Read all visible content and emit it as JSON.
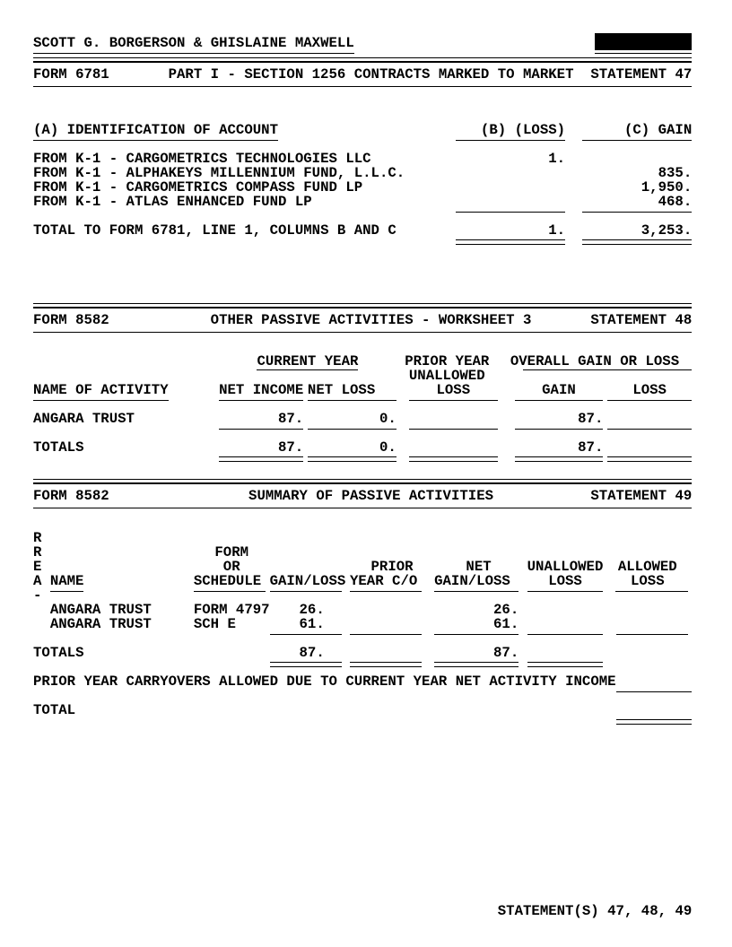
{
  "colors": {
    "text": "#000000",
    "background": "#ffffff",
    "redaction": "#000000"
  },
  "header": {
    "taxpayer_name": "SCOTT G. BORGERSON & GHISLAINE MAXWELL"
  },
  "footer": {
    "text": "STATEMENT(S) 47, 48, 49"
  },
  "statement47": {
    "form": "FORM 6781",
    "title": "PART I - SECTION 1256 CONTRACTS MARKED TO MARKET",
    "statement": "STATEMENT 47",
    "col_a": "(A) IDENTIFICATION OF ACCOUNT",
    "col_b": "(B) (LOSS)",
    "col_c": "(C) GAIN",
    "rows": [
      {
        "account": "FROM K-1 - CARGOMETRICS TECHNOLOGIES LLC",
        "loss": "1.",
        "gain": ""
      },
      {
        "account": "FROM K-1 - ALPHAKEYS MILLENNIUM FUND, L.L.C.",
        "loss": "",
        "gain": "835."
      },
      {
        "account": "FROM K-1 - CARGOMETRICS COMPASS FUND LP",
        "loss": "",
        "gain": "1,950."
      },
      {
        "account": "FROM K-1 - ATLAS ENHANCED FUND LP",
        "loss": "",
        "gain": "468."
      }
    ],
    "total": {
      "label": "TOTAL TO FORM 6781, LINE 1, COLUMNS B AND C",
      "loss": "1.",
      "gain": "3,253."
    }
  },
  "statement48": {
    "form": "FORM 8582",
    "title": "OTHER PASSIVE ACTIVITIES - WORKSHEET 3",
    "statement": "STATEMENT 48",
    "group_current": "CURRENT YEAR",
    "group_prior_line1": "PRIOR YEAR",
    "group_prior_line2": "UNALLOWED",
    "group_overall": "OVERALL GAIN OR LOSS",
    "col_name": "NAME OF ACTIVITY",
    "col_net_income": "NET INCOME",
    "col_net_loss": "NET LOSS",
    "col_prior_loss": "LOSS",
    "col_gain": "GAIN",
    "col_loss": "LOSS",
    "rows": [
      {
        "name": "ANGARA TRUST",
        "net_income": "87.",
        "net_loss": "0.",
        "prior_loss": "",
        "gain": "87.",
        "loss": ""
      }
    ],
    "totals": {
      "label": "TOTALS",
      "net_income": "87.",
      "net_loss": "0.",
      "prior_loss": "",
      "gain": "87.",
      "loss": ""
    }
  },
  "statement49": {
    "form": "FORM 8582",
    "title": "SUMMARY OF PASSIVE ACTIVITIES",
    "statement": "STATEMENT 49",
    "vert": {
      "l1": "R",
      "l2": "R",
      "l3": "E",
      "l4": "A",
      "l5": "-"
    },
    "col_name": "NAME",
    "col_sched_line1": "FORM",
    "col_sched_line2": "OR",
    "col_sched_line3": "SCHEDULE",
    "col_gainloss": "GAIN/LOSS",
    "col_prior_line1": "PRIOR",
    "col_prior_line2": "YEAR C/O",
    "col_net_line1": "NET",
    "col_net_line2": "GAIN/LOSS",
    "col_unallowed_line1": "UNALLOWED",
    "col_unallowed_line2": "LOSS",
    "col_allowed_line1": "ALLOWED",
    "col_allowed_line2": "LOSS",
    "rows": [
      {
        "name": "ANGARA TRUST",
        "schedule": "FORM 4797",
        "gain_loss": "26.",
        "prior_co": "",
        "net_gain_loss": "26.",
        "unallowed": "",
        "allowed": ""
      },
      {
        "name": "ANGARA TRUST",
        "schedule": "SCH E",
        "gain_loss": "61.",
        "prior_co": "",
        "net_gain_loss": "61.",
        "unallowed": "",
        "allowed": ""
      }
    ],
    "totals": {
      "label": "TOTALS",
      "gain_loss": "87.",
      "net_gain_loss": "87."
    },
    "carryover_label": "PRIOR YEAR CARRYOVERS ALLOWED DUE TO CURRENT YEAR NET ACTIVITY INCOME",
    "total_label": "TOTAL"
  }
}
